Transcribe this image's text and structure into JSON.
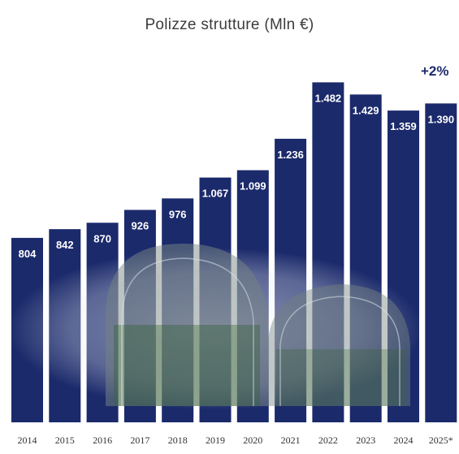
{
  "chart_data": {
    "type": "bar",
    "title": "Polizze strutture (Mln €)",
    "categories": [
      "2014",
      "2015",
      "2016",
      "2017",
      "2018",
      "2019",
      "2020",
      "2021",
      "2022",
      "2023",
      "2024",
      "2025*"
    ],
    "values": [
      804,
      842,
      870,
      926,
      976,
      1067,
      1099,
      1236,
      1482,
      1429,
      1359,
      1390
    ],
    "value_labels": [
      "804",
      "842",
      "870",
      "926",
      "976",
      "1.067",
      "1.099",
      "1.236",
      "1.482",
      "1.429",
      "1.359",
      "1.390"
    ],
    "ylim": [
      0,
      1540
    ],
    "xlabel": "",
    "ylabel": "",
    "annotation": "+2%",
    "bar_color": "#1b2a6b",
    "grid": false,
    "legend": "none"
  }
}
